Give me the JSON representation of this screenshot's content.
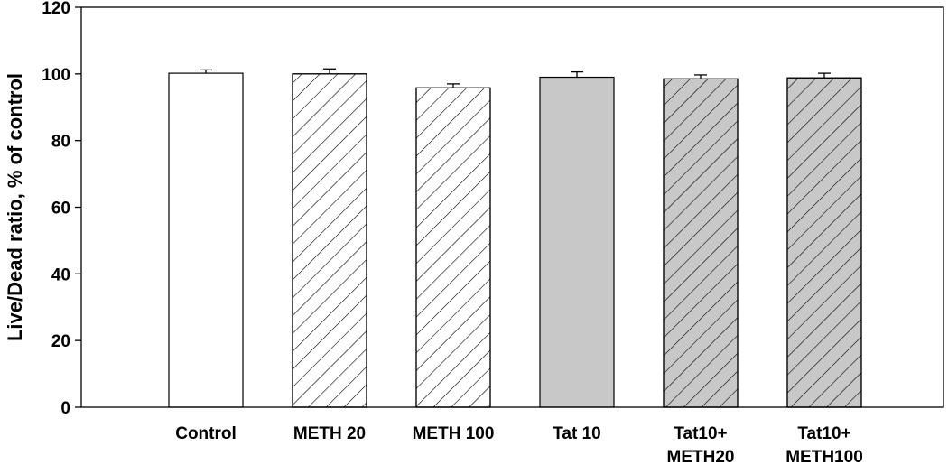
{
  "chart_data": {
    "type": "bar",
    "title": "",
    "xlabel": "",
    "ylabel": "Live/Dead ratio, % of control",
    "ylim": [
      0,
      120
    ],
    "yticks": [
      0,
      20,
      40,
      60,
      80,
      100,
      120
    ],
    "grid": false,
    "legend": "none",
    "categories": [
      {
        "label": "Control",
        "lines": [
          "Control"
        ],
        "value": 100.2,
        "error": 1.0,
        "fill": "#ffffff",
        "hatch": false
      },
      {
        "label": "METH 20",
        "lines": [
          "METH 20"
        ],
        "value": 100.0,
        "error": 1.5,
        "fill": "#ffffff",
        "hatch": true
      },
      {
        "label": "METH 100",
        "lines": [
          "METH 100"
        ],
        "value": 95.8,
        "error": 1.2,
        "fill": "#ffffff",
        "hatch": true
      },
      {
        "label": "Tat 10",
        "lines": [
          "Tat 10"
        ],
        "value": 99.0,
        "error": 1.6,
        "fill": "#c8c8c8",
        "hatch": false
      },
      {
        "label": "Tat10+ METH20",
        "lines": [
          "Tat10+",
          "METH20"
        ],
        "value": 98.5,
        "error": 1.2,
        "fill": "#c8c8c8",
        "hatch": true
      },
      {
        "label": "Tat10+ METH100",
        "lines": [
          "Tat10+",
          "METH100"
        ],
        "value": 98.8,
        "error": 1.4,
        "fill": "#c8c8c8",
        "hatch": true
      }
    ]
  }
}
